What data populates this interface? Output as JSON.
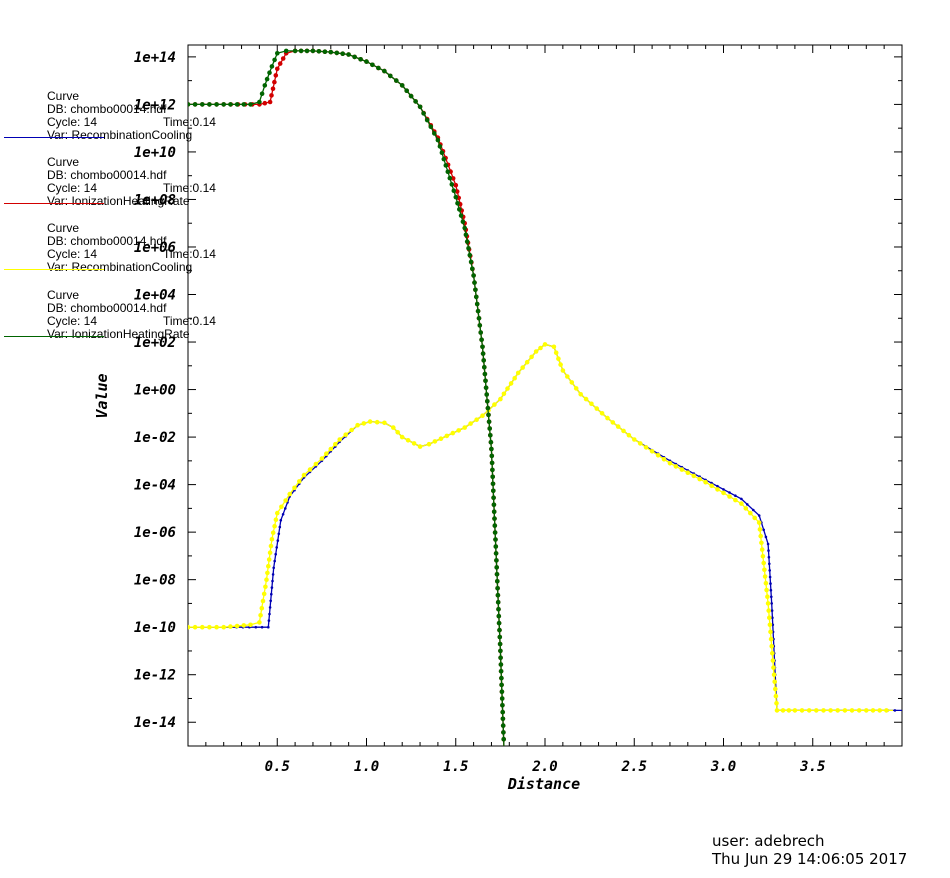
{
  "chart_data": {
    "type": "line",
    "title": "",
    "xlabel": "Distance",
    "ylabel": "Value",
    "xlim": [
      0.0,
      4.0
    ],
    "y_scale": "log",
    "ylim_exponent": [
      -15.0,
      14.5
    ],
    "x_ticks": [
      "0.5",
      "1.0",
      "1.5",
      "2.0",
      "2.5",
      "3.0",
      "3.5"
    ],
    "y_ticks": [
      "1e+14",
      "1e+12",
      "1e+10",
      "1e+08",
      "1e+06",
      "1e+04",
      "1e+02",
      "1e+00",
      "1e-02",
      "1e-04",
      "1e-06",
      "1e-08",
      "1e-10",
      "1e-12",
      "1e-14"
    ],
    "legend": [
      {
        "label": "Curve",
        "db": "DB: chombo00014.hdf",
        "cycle": "Cycle:  14",
        "time": "Time:0.14",
        "var": "Var: RecombinationCooling",
        "color": "#0000b4"
      },
      {
        "label": "Curve",
        "db": "DB: chombo00014.hdf",
        "cycle": "Cycle:  14",
        "time": "Time:0.14",
        "var": "Var: IonizationHeatingRate",
        "color": "#d20000"
      },
      {
        "label": "Curve",
        "db": "DB: chombo00014.hdf",
        "cycle": "Cycle:  14",
        "time": "Time:0.14",
        "var": "Var: RecombinationCooling",
        "color": "#ffff00"
      },
      {
        "label": "Curve",
        "db": "DB: chombo00014.hdf",
        "cycle": "Cycle:  14",
        "time": "Time:0.14",
        "var": "Var: IonizationHeatingRate",
        "color": "#006400"
      }
    ],
    "series": [
      {
        "color": "#0000b4",
        "x": [
          0.0,
          0.2,
          0.38,
          0.45,
          0.48,
          0.52,
          0.57,
          0.65,
          0.75,
          0.85,
          0.95,
          1.02,
          1.1,
          1.15,
          1.2,
          1.3,
          1.35,
          1.45,
          1.55,
          1.65,
          1.75,
          1.85,
          1.95,
          2.0,
          2.05,
          2.1,
          2.2,
          2.35,
          2.5,
          2.7,
          2.9,
          3.1,
          3.2,
          3.25,
          3.27,
          3.3,
          3.4,
          3.6,
          3.8,
          4.0
        ],
        "y_exp": [
          -10.0,
          -10.0,
          -10.0,
          -10.0,
          -7.5,
          -5.5,
          -4.5,
          -3.7,
          -3.0,
          -2.2,
          -1.5,
          -1.35,
          -1.4,
          -1.6,
          -2.0,
          -2.4,
          -2.3,
          -1.95,
          -1.6,
          -1.1,
          -0.4,
          0.7,
          1.6,
          1.9,
          1.8,
          0.8,
          -0.2,
          -1.2,
          -2.1,
          -3.0,
          -3.8,
          -4.6,
          -5.3,
          -6.5,
          -9.0,
          -13.5,
          -13.5,
          -13.5,
          -13.5,
          -13.5
        ]
      },
      {
        "color": "#d20000",
        "x": [
          0.0,
          0.2,
          0.4,
          0.46,
          0.5,
          0.55,
          0.6,
          0.7,
          0.8,
          0.9,
          1.0,
          1.1,
          1.2,
          1.3,
          1.4,
          1.5,
          1.55,
          1.6,
          1.65,
          1.7,
          1.75,
          1.77
        ],
        "y_exp": [
          12.0,
          12.0,
          12.0,
          12.1,
          13.5,
          14.15,
          14.25,
          14.25,
          14.2,
          14.1,
          13.8,
          13.4,
          12.8,
          11.9,
          10.6,
          8.6,
          7.0,
          4.8,
          1.8,
          -2.5,
          -11.0,
          -15.0
        ]
      },
      {
        "color": "#ffff00",
        "x": [
          0.0,
          0.2,
          0.35,
          0.4,
          0.44,
          0.47,
          0.5,
          0.57,
          0.65,
          0.75,
          0.85,
          0.95,
          1.02,
          1.1,
          1.15,
          1.2,
          1.3,
          1.35,
          1.45,
          1.55,
          1.65,
          1.75,
          1.85,
          1.95,
          2.0,
          2.05,
          2.1,
          2.2,
          2.35,
          2.5,
          2.7,
          2.9,
          3.1,
          3.2,
          3.25,
          3.3,
          3.4,
          3.6,
          3.8,
          3.95
        ],
        "y_exp": [
          -10.0,
          -10.0,
          -9.9,
          -9.8,
          -8.0,
          -6.3,
          -5.2,
          -4.4,
          -3.6,
          -2.9,
          -2.1,
          -1.5,
          -1.35,
          -1.4,
          -1.6,
          -2.0,
          -2.4,
          -2.3,
          -1.95,
          -1.6,
          -1.1,
          -0.4,
          0.7,
          1.6,
          1.9,
          1.8,
          0.8,
          -0.2,
          -1.2,
          -2.1,
          -3.1,
          -3.9,
          -4.8,
          -5.6,
          -9.0,
          -13.5,
          -13.5,
          -13.5,
          -13.5,
          -13.5
        ]
      },
      {
        "color": "#006400",
        "x": [
          0.0,
          0.2,
          0.35,
          0.4,
          0.43,
          0.47,
          0.5,
          0.55,
          0.6,
          0.7,
          0.8,
          0.9,
          1.0,
          1.1,
          1.2,
          1.3,
          1.4,
          1.5,
          1.55,
          1.6,
          1.65,
          1.7,
          1.75,
          1.77
        ],
        "y_exp": [
          12.0,
          12.0,
          12.0,
          12.1,
          12.8,
          13.6,
          14.15,
          14.25,
          14.25,
          14.25,
          14.2,
          14.1,
          13.8,
          13.4,
          12.8,
          11.9,
          10.5,
          8.1,
          6.8,
          4.8,
          1.8,
          -2.5,
          -11.0,
          -15.0
        ]
      }
    ]
  },
  "footer": {
    "user": "user: adebrech",
    "date": "Thu Jun 29 14:06:05 2017"
  }
}
